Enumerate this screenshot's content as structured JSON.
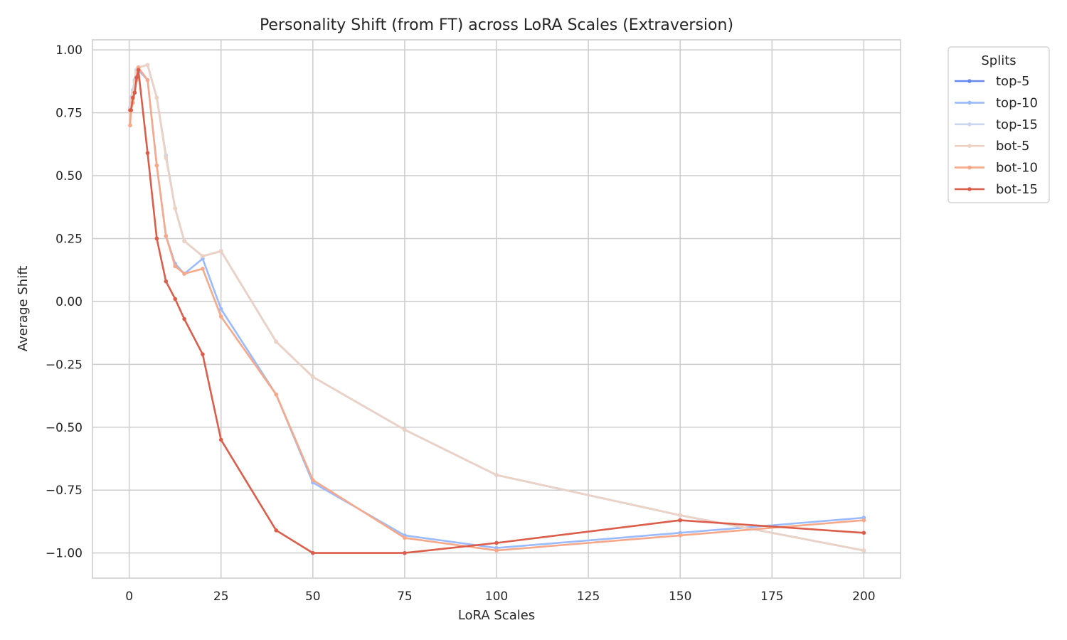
{
  "chart_data": {
    "type": "line",
    "title": "Personality Shift (from FT) across LoRA Scales (Extraversion)",
    "xlabel": "LoRA Scales",
    "ylabel": "Average Shift",
    "xlim": [
      -10,
      210
    ],
    "ylim": [
      -1.1,
      1.04
    ],
    "x_ticks": [
      0,
      25,
      50,
      75,
      100,
      125,
      150,
      175,
      200
    ],
    "x_tick_labels": [
      "0",
      "25",
      "50",
      "75",
      "100",
      "125",
      "150",
      "175",
      "200"
    ],
    "y_ticks": [
      1.0,
      0.75,
      0.5,
      0.25,
      0.0,
      -0.25,
      -0.5,
      -0.75,
      -1.0
    ],
    "y_tick_labels": [
      "1.00",
      "0.75",
      "0.50",
      "0.25",
      "0.00",
      "−0.25",
      "−0.50",
      "−0.75",
      "−1.00"
    ],
    "grid": true,
    "legend": {
      "title": "Splits",
      "placement": "outside-top-right"
    },
    "x": [
      0.25,
      0.5,
      1,
      1.5,
      2,
      2.5,
      5,
      7.5,
      10,
      12.5,
      15,
      20,
      25,
      40,
      50,
      75,
      100,
      150,
      200
    ],
    "series": [
      {
        "name": "top-5",
        "color": "#6788ee",
        "values": [
          0.77,
          0.81,
          0.84,
          0.88,
          0.92,
          0.93,
          0.94,
          0.81,
          0.58,
          0.37,
          0.24,
          0.18,
          0.2,
          -0.16,
          -0.3,
          -0.51,
          -0.69,
          -0.85,
          -0.99
        ]
      },
      {
        "name": "top-10",
        "color": "#9abbff",
        "values": [
          0.77,
          0.81,
          0.84,
          0.87,
          0.91,
          0.92,
          0.88,
          0.54,
          0.26,
          0.15,
          0.11,
          0.17,
          -0.03,
          -0.37,
          -0.72,
          -0.93,
          -0.98,
          -0.92,
          -0.86
        ]
      },
      {
        "name": "top-15",
        "color": "#c9d7f0",
        "values": [
          0.77,
          0.81,
          0.84,
          0.88,
          0.92,
          0.93,
          0.94,
          0.81,
          0.58,
          0.37,
          0.24,
          0.18,
          0.2,
          -0.16,
          -0.3,
          -0.51,
          -0.69,
          -0.85,
          -0.99
        ]
      },
      {
        "name": "bot-5",
        "color": "#edd1c2",
        "values": [
          0.75,
          0.8,
          0.83,
          0.87,
          0.91,
          0.93,
          0.94,
          0.81,
          0.57,
          0.37,
          0.24,
          0.18,
          0.2,
          -0.16,
          -0.3,
          -0.51,
          -0.69,
          -0.85,
          -0.99
        ]
      },
      {
        "name": "bot-10",
        "color": "#f7a889",
        "values": [
          0.7,
          0.76,
          0.79,
          0.83,
          0.88,
          0.93,
          0.88,
          0.54,
          0.26,
          0.14,
          0.11,
          0.13,
          -0.06,
          -0.37,
          -0.71,
          -0.94,
          -0.99,
          -0.93,
          -0.87
        ]
      },
      {
        "name": "bot-15",
        "color": "#dc5d4a",
        "values": [
          0.76,
          0.76,
          0.81,
          0.83,
          0.89,
          0.92,
          0.59,
          0.25,
          0.08,
          0.01,
          -0.07,
          -0.21,
          -0.55,
          -0.91,
          -1.0,
          -1.0,
          -0.96,
          -0.87,
          -0.92
        ]
      }
    ]
  }
}
